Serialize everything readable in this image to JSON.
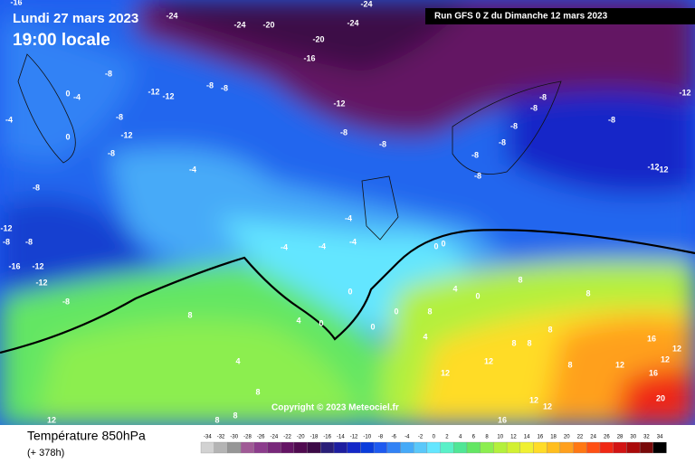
{
  "header": {
    "title": "Lundi 27 mars 2023",
    "time": "19:00 locale",
    "run": "Run GFS 0 Z du Dimanche 12 mars 2023"
  },
  "copyright": "Copyright © 2023 Meteociel.fr",
  "footer": {
    "title": "Température 850hPa",
    "lead": "(+ 378h)"
  },
  "contour_labels": [
    -16,
    -24,
    -24,
    -20,
    -24,
    -24,
    -20,
    -16,
    -8,
    0,
    -4,
    -4,
    -12,
    -12,
    -8,
    -8,
    -12,
    -8,
    -12,
    0,
    -8,
    -8,
    -8,
    -8,
    -4,
    -8,
    -8,
    -8,
    -8,
    -8,
    -8,
    -8,
    -12,
    -12,
    -12,
    -4,
    -4,
    -4,
    -4,
    -12,
    -8,
    -8,
    -16,
    -12,
    -12,
    -8,
    0,
    0,
    0,
    0,
    0,
    0,
    0,
    4,
    8,
    8,
    8,
    8,
    4,
    4,
    4,
    8,
    8,
    8,
    12,
    8,
    8,
    8,
    12,
    12,
    16,
    12,
    16,
    12,
    12,
    8,
    12,
    12,
    16,
    20
  ],
  "legend": {
    "ticks": [
      -34,
      -32,
      -30,
      -28,
      -26,
      -24,
      -22,
      -20,
      -18,
      -16,
      -14,
      -12,
      -10,
      -8,
      -6,
      -4,
      -2,
      0,
      2,
      4,
      6,
      8,
      10,
      12,
      14,
      16,
      18,
      20,
      22,
      24,
      26,
      28,
      30,
      32,
      34
    ],
    "colors": [
      "#d2d2d2",
      "#b4b4b4",
      "#969696",
      "#a05a96",
      "#8c3c8c",
      "#78287a",
      "#641464",
      "#500a50",
      "#3c0a46",
      "#2a1e78",
      "#1e1ea0",
      "#1428c8",
      "#0a3cdc",
      "#1e5af0",
      "#3282f5",
      "#46aaf8",
      "#5ac8fa",
      "#64e6ff",
      "#5af0c8",
      "#50e696",
      "#64e664",
      "#8cee50",
      "#b4f03c",
      "#d2f032",
      "#f0f032",
      "#ffdc28",
      "#ffbe1e",
      "#ffa01e",
      "#ff7814",
      "#ff5014",
      "#f02814",
      "#d21414",
      "#aa0a0a",
      "#780a0a",
      "#000000"
    ]
  }
}
